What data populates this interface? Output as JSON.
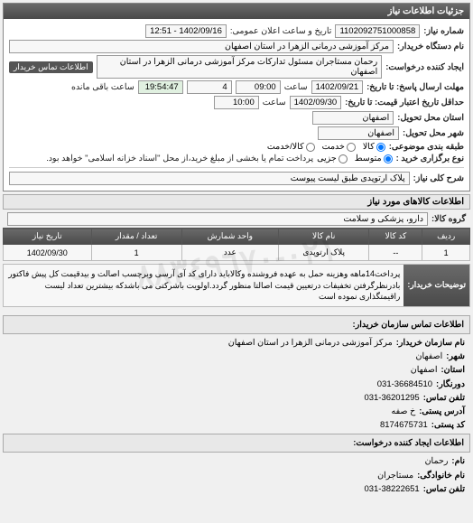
{
  "panel_title": "جزئیات اطلاعات نیاز",
  "request": {
    "number_label": "شماره نیاز:",
    "number": "1102092751000858",
    "datetime_label": "تاریخ و ساعت اعلان عمومی:",
    "datetime": "1402/09/16 - 12:51",
    "buyer_org_label": "نام دستگاه خریدار:",
    "buyer_org": "مرکز آموزشی درمانی الزهرا در استان اصفهان",
    "creator_label": "ایجاد کننده درخواست:",
    "creator": "رحمان مستاجران مسئول تدارکات مرکز آموزشی درمانی الزهرا در استان اصفهان",
    "buyer_contact_btn": "اطلاعات تماس خریدار",
    "response_deadline_label": "مهلت ارسال پاسخ: تا تاریخ:",
    "response_deadline_date": "1402/09/21",
    "response_deadline_time_label": "ساعت",
    "response_deadline_time": "09:00",
    "remaining_days": "4",
    "remaining_time": "19:54:47",
    "remaining_label": "ساعت باقی مانده",
    "validity_label": "حداقل تاریخ اعتبار قیمت: تا تاریخ:",
    "validity_date": "1402/09/30",
    "validity_time_label": "ساعت",
    "validity_time": "10:00",
    "delivery_province_label": "استان محل تحویل:",
    "delivery_province": "اصفهان",
    "delivery_city_label": "شهر محل تحویل:",
    "delivery_city": "اصفهان",
    "category_label": "طبقه بندی موضوعی:",
    "category_options": [
      "کالا",
      "خدمت",
      "کالا/خدمت"
    ],
    "category_selected": 0,
    "purchase_type_label": "نوع برگزاری خرید :",
    "purchase_type_options": [
      "متوسط",
      "جزیی"
    ],
    "purchase_type_selected": 0,
    "payment_note": "پرداخت تمام یا بخشی از مبلغ خرید،از محل \"اسناد خزانه اسلامی\" خواهد بود."
  },
  "need_summary": {
    "label": "شرح کلی نیاز:",
    "text": "پلاک ارتوپدی طبق لیست پیوست"
  },
  "goods_section_title": "اطلاعات کالاهای مورد نیاز",
  "goods_group": {
    "label": "گروه کالا:",
    "value": "دارو، پزشکی و سلامت"
  },
  "table": {
    "headers": [
      "ردیف",
      "کد کالا",
      "نام کالا",
      "واحد شمارش",
      "تعداد / مقدار",
      "تاریخ نیاز"
    ],
    "rows": [
      [
        "1",
        "--",
        "پلاک ارتوپدی",
        "عدد",
        "1",
        "1402/09/30"
      ]
    ]
  },
  "buyer_desc": {
    "label": "توضیحات خریدار:",
    "text": "پرداخت14ماهه وهزینه حمل به عهده فروشنده وکالاباید دارای کد آی آرسی وبرچسب اصالت و بیدقیمت کل پیش فاکتور بادرنظرگرفتن تخفیفات درتعیین قیمت اصالتا منظور گردد.اولویت باشرکتی می باشدکه بیشترین تعداد لیست راقیمتگذاری نموده است"
  },
  "contact": {
    "section1_title": "اطلاعات تماس سازمان خریدار:",
    "org_name_label": "نام سازمان خریدار:",
    "org_name": "مرکز آموزشی درمانی الزهرا در استان اصفهان",
    "city_label": "شهر:",
    "city": "اصفهان",
    "province_label": "استان:",
    "province": "اصفهان",
    "fax_label": "دورنگار:",
    "fax": "031-36684510",
    "phone_label": "تلفن تماس:",
    "phone": "031-36201295",
    "address_label": "آدرس پستی:",
    "address": "خ صفه",
    "postal_label": "کد پستی:",
    "postal": "8174675731",
    "section2_title": "اطلاعات ایجاد کننده درخواست:",
    "first_name_label": "نام:",
    "first_name": "رحمان",
    "last_name_label": "نام خانوادگی:",
    "last_name": "مستاجران",
    "phone2_label": "تلفن تماس:",
    "phone2": "031-38222651"
  },
  "colors": {
    "header_bg_top": "#6a6a6a",
    "header_bg_bottom": "#4a4a4a",
    "border": "#888888",
    "field_bg": "#f7f7f7"
  },
  "watermark": "٠٢١-٨٨٣٤٩٦٧٠"
}
